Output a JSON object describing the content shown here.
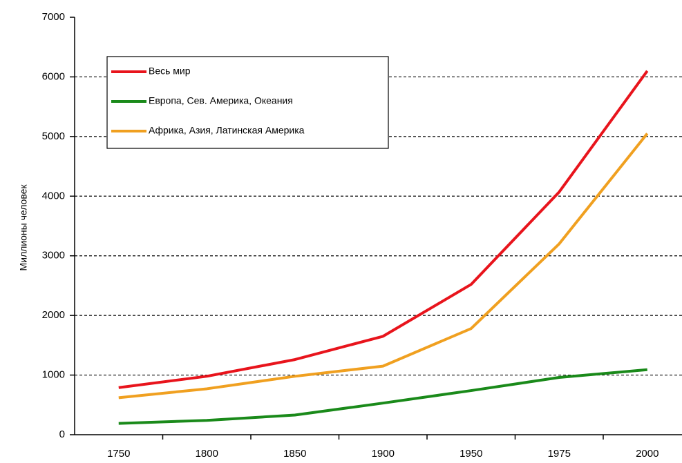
{
  "chart_data": {
    "type": "line",
    "ylabel": "Миллионы человек",
    "categories": [
      "1750",
      "1800",
      "1850",
      "1900",
      "1950",
      "1975",
      "2000"
    ],
    "series": [
      {
        "name": "Весь мир",
        "color": "#e8141c",
        "values": [
          790,
          980,
          1260,
          1650,
          2520,
          4070,
          6100
        ]
      },
      {
        "name": "Европа, Сев. Америка, Океания",
        "color": "#1a8a1a",
        "values": [
          190,
          240,
          330,
          530,
          740,
          960,
          1090
        ]
      },
      {
        "name": "Африка, Азия, Латинская Америка",
        "color": "#f0a020",
        "values": [
          620,
          770,
          980,
          1150,
          1780,
          3200,
          5050
        ]
      }
    ],
    "ylim": [
      0,
      7000
    ],
    "yticks": [
      0,
      1000,
      2000,
      3000,
      4000,
      5000,
      6000,
      7000
    ],
    "grid": true,
    "legend": "upper left"
  }
}
